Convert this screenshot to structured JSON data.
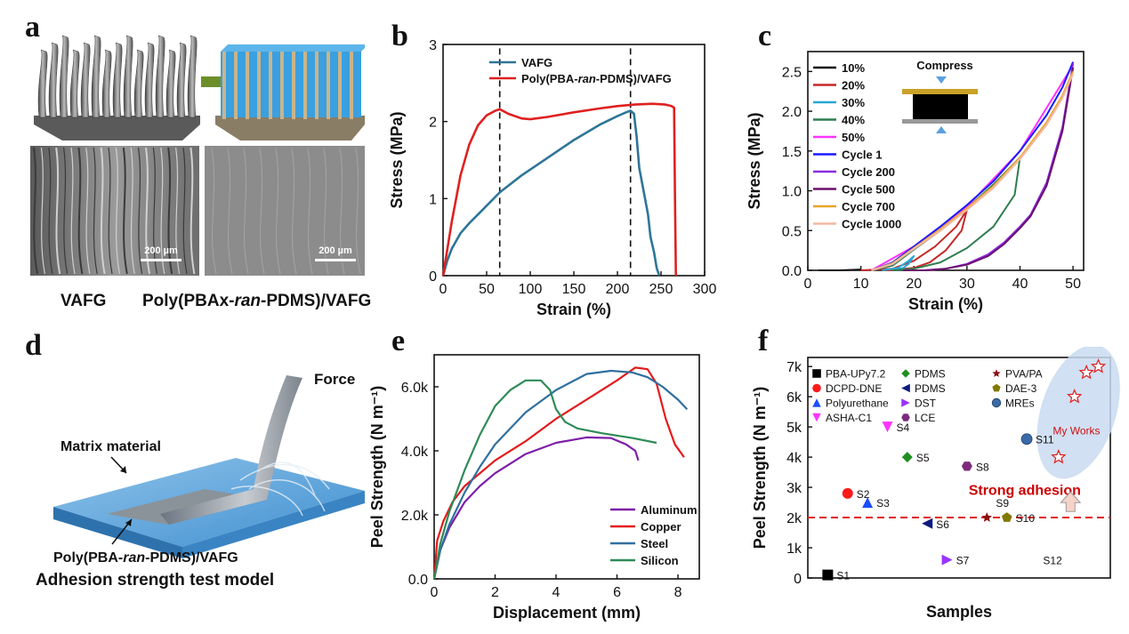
{
  "panels": {
    "a": {
      "letter": "a",
      "scale_bar_1": "200 µm",
      "scale_bar_2": "200 µm",
      "caption_left": "VAFG",
      "caption_right_pre": "Poly(PBAx-",
      "caption_right_it": "ran",
      "caption_right_post": "-PDMS)/VAFG"
    },
    "b": {
      "letter": "b"
    },
    "c": {
      "letter": "c",
      "compress_label": "Compress"
    },
    "d": {
      "letter": "d",
      "force_label": "Force",
      "matrix_label": "Matrix material",
      "film_label_pre": "Poly(PBA-",
      "film_label_it": "ran",
      "film_label_post": "-PDMS)/VAFG",
      "model_title": "Adhesion strength test model"
    },
    "e": {
      "letter": "e"
    },
    "f": {
      "letter": "f",
      "strong_label": "Strong adhesion",
      "works_label": "My Works"
    }
  },
  "colors": {
    "vafg": "#2e7598",
    "poly": "#e02020",
    "alu": "#7d1fa8",
    "cu": "#e41a1c",
    "steel": "#2f6f9f",
    "si": "#2e8b57"
  },
  "chart_data": [
    {
      "type": "line",
      "id": "b",
      "xlabel": "Strain (%)",
      "ylabel": "Stress (MPa)",
      "xlim": [
        0,
        300
      ],
      "ylim": [
        0,
        3
      ],
      "xticks": [
        "0",
        "50",
        "100",
        "150",
        "200",
        "250",
        "300"
      ],
      "yticks": [
        "0",
        "1",
        "2",
        "3"
      ],
      "vlines": [
        65,
        215
      ],
      "series": [
        {
          "name": "VAFG",
          "color": "#2e7598",
          "x": [
            0,
            5,
            10,
            20,
            30,
            45,
            65,
            90,
            120,
            150,
            180,
            200,
            210,
            215,
            219,
            222,
            225,
            230,
            235,
            238,
            242,
            245,
            248
          ],
          "y": [
            0,
            0.2,
            0.35,
            0.55,
            0.68,
            0.85,
            1.08,
            1.3,
            1.53,
            1.76,
            1.96,
            2.07,
            2.12,
            2.14,
            2.1,
            1.8,
            1.4,
            1.1,
            0.8,
            0.5,
            0.3,
            0.1,
            0
          ]
        },
        {
          "name": "Poly(PBA-ran-PDMS)/VAFG",
          "color": "#e02020",
          "x": [
            0,
            5,
            10,
            20,
            30,
            40,
            50,
            60,
            65,
            75,
            90,
            100,
            120,
            150,
            180,
            200,
            220,
            240,
            255,
            262,
            265,
            266,
            267
          ],
          "y": [
            0,
            0.35,
            0.7,
            1.3,
            1.7,
            1.95,
            2.08,
            2.14,
            2.16,
            2.1,
            2.04,
            2.03,
            2.06,
            2.12,
            2.17,
            2.2,
            2.22,
            2.23,
            2.22,
            2.2,
            2.18,
            1.0,
            0
          ]
        }
      ]
    },
    {
      "type": "line",
      "id": "c",
      "xlabel": "Strain (%)",
      "ylabel": "Stress (MPa)",
      "xlim": [
        0,
        52
      ],
      "ylim": [
        0,
        2.75
      ],
      "xticks": [
        "0",
        "10",
        "20",
        "30",
        "40",
        "50"
      ],
      "yticks": [
        "0.0",
        "0.5",
        "1.0",
        "1.5",
        "2.0",
        "2.5"
      ],
      "legend": [
        "10%",
        "20%",
        "30%",
        "40%",
        "50%",
        "Cycle 1",
        "Cycle 200",
        "Cycle 500",
        "Cycle 700",
        "Cycle 1000"
      ],
      "series": [
        {
          "name": "10%",
          "color": "#111111",
          "x": [
            2,
            6,
            10
          ],
          "y": [
            0,
            0,
            0.01
          ]
        },
        {
          "name": "20%",
          "color": "#c62828",
          "x": [
            10,
            16,
            20,
            24,
            28,
            30,
            29,
            26,
            23,
            20,
            17,
            14
          ],
          "y": [
            0,
            0.02,
            0.12,
            0.3,
            0.55,
            0.76,
            0.5,
            0.25,
            0.1,
            0.03,
            0.01,
            0
          ]
        },
        {
          "name": "30%",
          "color": "#29a8d8",
          "x": [
            14,
            17,
            19,
            20,
            19,
            18,
            16
          ],
          "y": [
            0,
            0.03,
            0.12,
            0.18,
            0.08,
            0.03,
            0
          ]
        },
        {
          "name": "40%",
          "color": "#2e7d4f",
          "x": [
            12,
            16,
            20,
            25,
            30,
            35,
            40,
            39,
            35,
            30,
            25,
            20,
            16
          ],
          "y": [
            0,
            0.06,
            0.26,
            0.5,
            0.78,
            1.08,
            1.42,
            0.95,
            0.55,
            0.28,
            0.1,
            0.02,
            0
          ]
        },
        {
          "name": "50%",
          "color": "#ff33ff",
          "x": [
            12,
            20,
            30,
            40,
            50
          ],
          "y": [
            0,
            0.3,
            0.8,
            1.5,
            2.58
          ]
        },
        {
          "name": "Cycle 1",
          "color": "#1a1aff",
          "x": [
            12,
            16,
            20,
            25,
            30,
            35,
            40,
            45,
            48,
            50
          ],
          "y": [
            0,
            0.1,
            0.3,
            0.55,
            0.82,
            1.12,
            1.5,
            1.95,
            2.3,
            2.62
          ]
        },
        {
          "name": "Cycle 200",
          "color": "#8a2be2",
          "x": [
            50,
            48,
            45,
            42,
            40,
            37,
            34,
            30,
            26,
            22,
            18
          ],
          "y": [
            2.6,
            1.8,
            1.1,
            0.7,
            0.55,
            0.35,
            0.2,
            0.08,
            0.02,
            0,
            0
          ]
        },
        {
          "name": "Cycle 500",
          "color": "#6b0f6b",
          "x": [
            50,
            48,
            45,
            42,
            40,
            37,
            34,
            30,
            26,
            22,
            18
          ],
          "y": [
            2.55,
            1.75,
            1.06,
            0.68,
            0.53,
            0.33,
            0.18,
            0.07,
            0.02,
            0,
            0
          ]
        },
        {
          "name": "Cycle 700",
          "color": "#e6a52a",
          "x": [
            12,
            16,
            20,
            25,
            30,
            35,
            40,
            45,
            48,
            50
          ],
          "y": [
            0,
            0.09,
            0.28,
            0.52,
            0.78,
            1.06,
            1.42,
            1.86,
            2.2,
            2.5
          ]
        },
        {
          "name": "Cycle 1000",
          "color": "#f4b8a0",
          "x": [
            12,
            16,
            20,
            25,
            30,
            35,
            40,
            45,
            48,
            50
          ],
          "y": [
            0,
            0.08,
            0.27,
            0.5,
            0.76,
            1.04,
            1.4,
            1.83,
            2.17,
            2.47
          ]
        }
      ]
    },
    {
      "type": "line",
      "id": "e",
      "xlabel": "Displacement (mm)",
      "ylabel": "Peel Strength (N m⁻¹)",
      "xlim": [
        0,
        8.7
      ],
      "ylim": [
        0,
        7000
      ],
      "xticks": [
        "0",
        "2",
        "4",
        "6",
        "8"
      ],
      "yticks": [
        "0.0",
        "2.0k",
        "4.0k",
        "6.0k"
      ],
      "legend": [
        "Aluminum",
        "Copper",
        "Steel",
        "Silicon"
      ],
      "series": [
        {
          "name": "Aluminum",
          "color": "#7d1fa8",
          "x": [
            0,
            0.2,
            0.5,
            1,
            1.5,
            2,
            3,
            4,
            5,
            5.8,
            6.3,
            6.6,
            6.7
          ],
          "y": [
            0,
            900,
            1600,
            2400,
            2900,
            3300,
            3900,
            4250,
            4420,
            4400,
            4200,
            4000,
            3700
          ]
        },
        {
          "name": "Copper",
          "color": "#e41a1c",
          "x": [
            0,
            0.1,
            0.3,
            0.6,
            1,
            2,
            3,
            4,
            5,
            6,
            6.6,
            7,
            7.3,
            7.6,
            7.9,
            8.2
          ],
          "y": [
            0,
            1200,
            1800,
            2400,
            2900,
            3700,
            4300,
            5000,
            5600,
            6200,
            6600,
            6550,
            6100,
            5000,
            4200,
            3800
          ]
        },
        {
          "name": "Steel",
          "color": "#2f6f9f",
          "x": [
            0,
            0.2,
            0.5,
            1,
            1.5,
            2,
            3,
            4,
            5,
            5.8,
            6.5,
            7,
            7.5,
            8,
            8.3
          ],
          "y": [
            0,
            900,
            1700,
            2700,
            3500,
            4200,
            5200,
            5900,
            6400,
            6500,
            6450,
            6300,
            6000,
            5600,
            5300
          ]
        },
        {
          "name": "Silicon",
          "color": "#2e8b57",
          "x": [
            0,
            0.2,
            0.5,
            1,
            1.5,
            2,
            2.5,
            3,
            3.5,
            3.8,
            4,
            4.3,
            4.7,
            5.5,
            6.5,
            7.3
          ],
          "y": [
            0,
            1100,
            2100,
            3400,
            4500,
            5400,
            5900,
            6200,
            6200,
            5900,
            5300,
            4900,
            4700,
            4550,
            4400,
            4250
          ]
        }
      ]
    },
    {
      "type": "scatter",
      "id": "f",
      "xlabel": "Samples",
      "ylabel": "Peel Strength (N m⁻¹)",
      "ylim": [
        0,
        7300
      ],
      "yticks": [
        "0",
        "1k",
        "2k",
        "3k",
        "4k",
        "5k",
        "6k",
        "7k"
      ],
      "threshold": 2000,
      "legend": [
        {
          "name": "PBA-UPy7.2",
          "shape": "square",
          "color": "#000000"
        },
        {
          "name": "DCPD-DNE",
          "shape": "circle",
          "color": "#ff1a1a"
        },
        {
          "name": "Polyurethane",
          "shape": "triangle-up",
          "color": "#1a4dff"
        },
        {
          "name": "ASHA-C1",
          "shape": "triangle-down",
          "color": "#ff33ff"
        },
        {
          "name": "PDMS",
          "shape": "diamond",
          "color": "#1f8f1f"
        },
        {
          "name": "PDMS",
          "shape": "triangle-left",
          "color": "#0d1a80"
        },
        {
          "name": "DST",
          "shape": "triangle-right",
          "color": "#9933ff"
        },
        {
          "name": "LCE",
          "shape": "hexagon",
          "color": "#7d2a7d"
        },
        {
          "name": "PVA/PA",
          "shape": "star",
          "color": "#8b1010"
        },
        {
          "name": "DAE-3",
          "shape": "pentagon",
          "color": "#807a00"
        },
        {
          "name": "MREs",
          "shape": "ball",
          "color": "#3b6aa8"
        }
      ],
      "points": [
        {
          "label": "S1",
          "x": 1,
          "y": 100,
          "shape": "square",
          "color": "#000000"
        },
        {
          "label": "S2",
          "x": 2,
          "y": 2800,
          "shape": "circle",
          "color": "#ff1a1a"
        },
        {
          "label": "S3",
          "x": 3,
          "y": 2500,
          "shape": "triangle-up",
          "color": "#1a4dff"
        },
        {
          "label": "S4",
          "x": 4,
          "y": 5000,
          "shape": "triangle-down",
          "color": "#ff33ff"
        },
        {
          "label": "S5",
          "x": 5,
          "y": 4000,
          "shape": "diamond",
          "color": "#1f8f1f"
        },
        {
          "label": "S6",
          "x": 6,
          "y": 1800,
          "shape": "triangle-left",
          "color": "#0d1a80"
        },
        {
          "label": "S7",
          "x": 7,
          "y": 600,
          "shape": "triangle-right",
          "color": "#9933ff"
        },
        {
          "label": "S8",
          "x": 8,
          "y": 3700,
          "shape": "hexagon",
          "color": "#7d2a7d"
        },
        {
          "label": "S9",
          "x": 9,
          "y": 2000,
          "shape": "star",
          "color": "#8b1010"
        },
        {
          "label": "S10",
          "x": 10,
          "y": 2000,
          "shape": "pentagon",
          "color": "#807a00"
        },
        {
          "label": "S11",
          "x": 11,
          "y": 4600,
          "shape": "ball",
          "color": "#3b6aa8"
        },
        {
          "label": "S12",
          "x": 12,
          "y": null,
          "shape": "none",
          "color": "#000000"
        }
      ],
      "my_works": [
        {
          "x": 12.6,
          "y": 4000
        },
        {
          "x": 13.4,
          "y": 6000
        },
        {
          "x": 14.0,
          "y": 6800
        },
        {
          "x": 14.6,
          "y": 7000
        }
      ]
    }
  ]
}
